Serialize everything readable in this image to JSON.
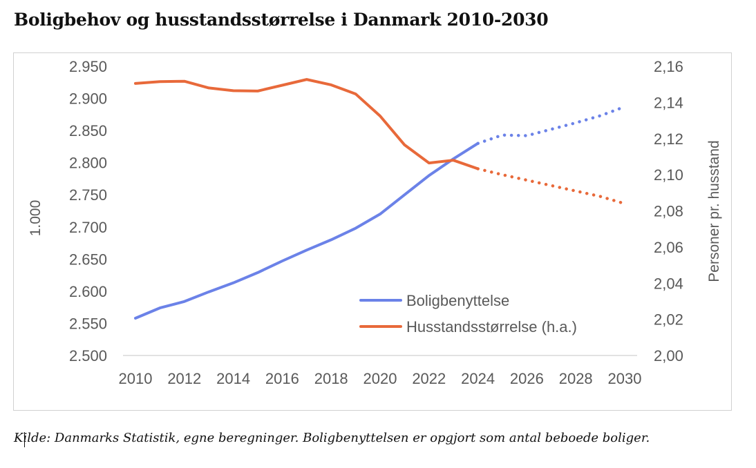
{
  "title": "Boligbehov og husstandsstørrelse i Danmark 2010-2030",
  "footnote": "Kilde: Danmarks Statistik, egne beregninger. Boligbenyttelsen er opgjort som antal beboede boliger.",
  "chart_data": {
    "type": "line",
    "x": [
      2010,
      2011,
      2012,
      2013,
      2014,
      2015,
      2016,
      2017,
      2018,
      2019,
      2020,
      2021,
      2022,
      2023,
      2024,
      2025,
      2026,
      2027,
      2028,
      2029,
      2030
    ],
    "x_ticks": [
      "2010",
      "2012",
      "2014",
      "2016",
      "2018",
      "2020",
      "2022",
      "2024",
      "2026",
      "2028",
      "2030"
    ],
    "y_left": {
      "label": "1.000",
      "min": 2500,
      "max": 2950,
      "ticks": [
        "2.500",
        "2.550",
        "2.600",
        "2.650",
        "2.700",
        "2.750",
        "2.800",
        "2.850",
        "2.900",
        "2.950"
      ]
    },
    "y_right": {
      "label": "Personer pr. husstand",
      "min": 2.0,
      "max": 2.16,
      "ticks": [
        "2,00",
        "2,02",
        "2,04",
        "2,06",
        "2,08",
        "2,10",
        "2,12",
        "2,14",
        "2,16"
      ]
    },
    "projection_from": 2024,
    "series": [
      {
        "name": "Boligbenyttelse",
        "axis": "left",
        "color": "#6b82e8",
        "values": [
          2558,
          2574,
          2584,
          2599,
          2613,
          2629,
          2647,
          2664,
          2680,
          2698,
          2720,
          2750,
          2780,
          2806,
          2830,
          2843,
          2842,
          2852,
          2862,
          2873,
          2887
        ]
      },
      {
        "name": "Husstandsstørrelse (h.a.)",
        "axis": "right",
        "color": "#e8693a",
        "values": [
          2.1505,
          2.1515,
          2.1517,
          2.148,
          2.1465,
          2.1463,
          2.1495,
          2.1527,
          2.1497,
          2.1447,
          2.1325,
          2.1165,
          2.1065,
          2.108,
          2.1033,
          2.1,
          2.097,
          2.094,
          2.091,
          2.088,
          2.084
        ]
      }
    ],
    "grid": false,
    "legend_position": "bottom-center"
  }
}
